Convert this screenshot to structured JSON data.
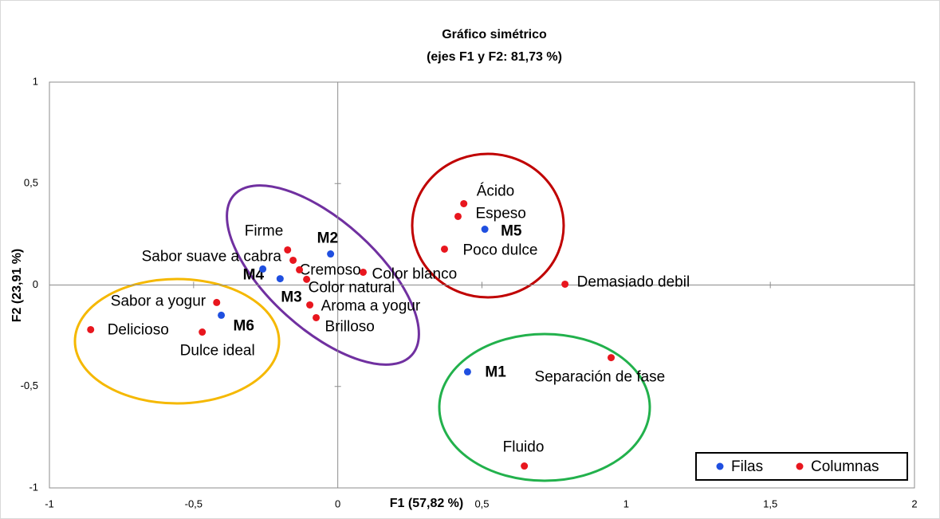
{
  "chart_data": {
    "type": "scatter",
    "title": "Gráfico simétrico",
    "subtitle": "(ejes F1 y F2: 81,73 %)",
    "x_label": "F1 (57,82 %)",
    "y_label": "F2 (23,91 %)",
    "xlim": [
      -1,
      2
    ],
    "ylim": [
      -1,
      1
    ],
    "xticks": [
      -1,
      {
        "value": -0.5,
        "label": "-0,5"
      },
      0,
      {
        "value": 0.5,
        "label": "0,5"
      },
      1,
      {
        "value": 1.5,
        "label": "1,5"
      },
      2
    ],
    "yticks": [
      -1,
      {
        "value": -0.5,
        "label": "-0,5"
      },
      0,
      {
        "value": 0.5,
        "label": "0,5"
      },
      1
    ],
    "legend": "lower right",
    "series": [
      {
        "name": "Filas",
        "color": "#1f4fe0",
        "labels": [
          "M2",
          "M4",
          "M3",
          "M5",
          "M1",
          "M6"
        ],
        "x": [
          -0.025,
          -0.26,
          -0.2,
          0.51,
          0.45,
          -0.404
        ],
        "values": [
          0.153,
          0.079,
          0.031,
          0.275,
          -0.428,
          -0.149
        ]
      },
      {
        "name": "Columnas",
        "color": "#e8161e",
        "labels": [
          "Ácido",
          "Espeso",
          "Poco dulce",
          "Demasiado debil",
          "Separación de fase",
          "Fluido",
          "Firme",
          "Sabor suave a cabra",
          "Cremoso",
          "Color blanco",
          "Color natural",
          "Aroma a yogur",
          "Brilloso",
          "Sabor a yogur",
          "Delicioso",
          "Dulce ideal"
        ],
        "x": [
          0.437,
          0.417,
          0.37,
          0.788,
          0.948,
          0.647,
          -0.174,
          -0.155,
          -0.133,
          0.088,
          -0.108,
          -0.097,
          -0.075,
          -0.42,
          -0.857,
          -0.47
        ],
        "values": [
          0.401,
          0.338,
          0.177,
          0.004,
          -0.358,
          -0.892,
          0.173,
          0.122,
          0.075,
          0.063,
          0.028,
          -0.098,
          -0.161,
          -0.086,
          -0.22,
          -0.232
        ]
      }
    ]
  }
}
